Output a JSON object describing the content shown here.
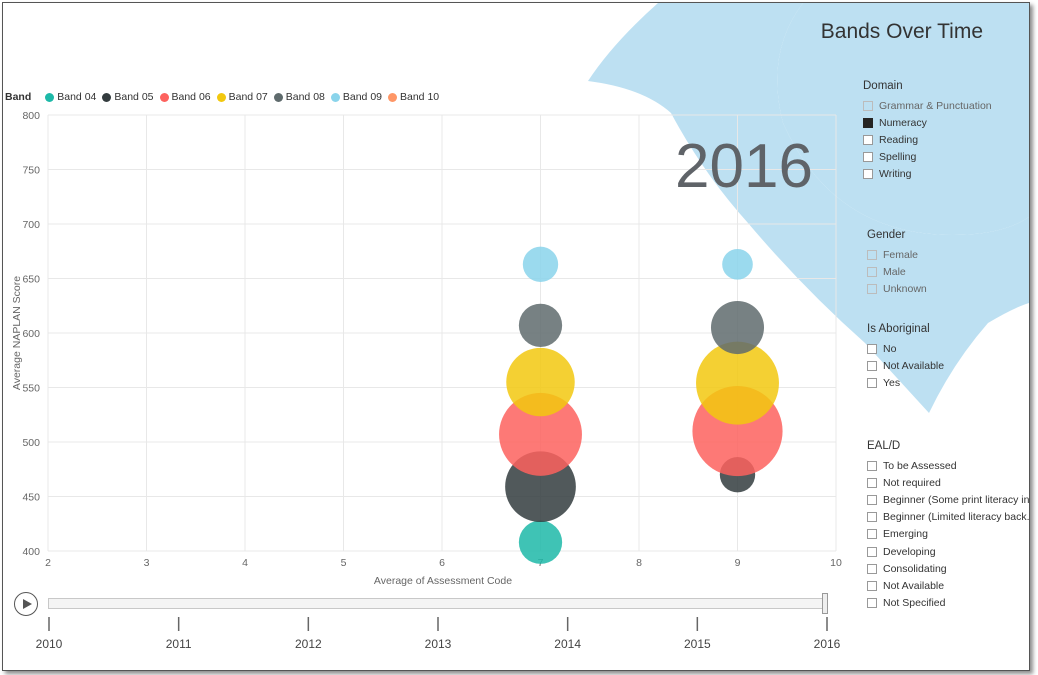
{
  "chart_data": {
    "type": "scatter",
    "title": "",
    "xlabel": "Average of Assessment Code",
    "ylabel": "Average NAPLAN Score",
    "xlim": [
      2,
      10
    ],
    "ylim": [
      400,
      800
    ],
    "x_ticks": [
      "2",
      "3",
      "4",
      "5",
      "6",
      "7",
      "8",
      "9",
      "10"
    ],
    "y_ticks": [
      "800",
      "750",
      "700",
      "650",
      "600",
      "550",
      "500",
      "450",
      "400"
    ],
    "grid": true,
    "legend_title": "Band",
    "legend_position": "top-left",
    "series": [
      {
        "name": "Band 04",
        "color": "#1db9a8",
        "points": [
          {
            "x": 7,
            "y": 408,
            "size": 3
          }
        ]
      },
      {
        "name": "Band 05",
        "color": "#333c3e",
        "points": [
          {
            "x": 7,
            "y": 459,
            "size": 8
          },
          {
            "x": 9,
            "y": 470,
            "size": 2
          }
        ]
      },
      {
        "name": "Band 06",
        "color": "#fd625e",
        "points": [
          {
            "x": 7,
            "y": 507,
            "size": 11
          },
          {
            "x": 9,
            "y": 510,
            "size": 13
          }
        ]
      },
      {
        "name": "Band 07",
        "color": "#f2c80f",
        "points": [
          {
            "x": 7,
            "y": 555,
            "size": 7.5
          },
          {
            "x": 9,
            "y": 554,
            "size": 11
          }
        ]
      },
      {
        "name": "Band 08",
        "color": "#5f6b6d",
        "points": [
          {
            "x": 7,
            "y": 607,
            "size": 3
          },
          {
            "x": 9,
            "y": 605,
            "size": 4.5
          }
        ]
      },
      {
        "name": "Band 09",
        "color": "#8ad4eb",
        "points": [
          {
            "x": 7,
            "y": 663,
            "size": 2
          },
          {
            "x": 9,
            "y": 663,
            "size": 1.5
          }
        ]
      },
      {
        "name": "Band 10",
        "color": "#fe9666",
        "points": []
      }
    ]
  },
  "report_title": "Bands Over Time",
  "current_year": "2016",
  "timeline": {
    "years": [
      "2010",
      "2011",
      "2012",
      "2013",
      "2014",
      "2015",
      "2016"
    ],
    "current": "2016",
    "progress": 1.0
  },
  "slicers": {
    "domain": {
      "title": "Domain",
      "items": [
        {
          "label": "Grammar & Punctuation",
          "checked": false
        },
        {
          "label": "Numeracy",
          "checked": true
        },
        {
          "label": "Reading",
          "checked": false
        },
        {
          "label": "Spelling",
          "checked": false
        },
        {
          "label": "Writing",
          "checked": false
        }
      ]
    },
    "gender": {
      "title": "Gender",
      "items": [
        {
          "label": "Female",
          "checked": false
        },
        {
          "label": "Male",
          "checked": false
        },
        {
          "label": "Unknown",
          "checked": false
        }
      ]
    },
    "aboriginal": {
      "title": "Is Aboriginal",
      "items": [
        {
          "label": "No",
          "checked": false
        },
        {
          "label": "Not Available",
          "checked": false
        },
        {
          "label": "Yes",
          "checked": false
        }
      ]
    },
    "eald": {
      "title": "EAL/D",
      "items": [
        {
          "label": "To be Assessed",
          "checked": false
        },
        {
          "label": "Not required",
          "checked": false
        },
        {
          "label": "Beginner (Some print literacy in...",
          "checked": false
        },
        {
          "label": "Beginner (Limited literacy back...",
          "checked": false
        },
        {
          "label": "Emerging",
          "checked": false
        },
        {
          "label": "Developing",
          "checked": false
        },
        {
          "label": "Consolidating",
          "checked": false
        },
        {
          "label": "Not Available",
          "checked": false
        },
        {
          "label": "Not Specified",
          "checked": false
        }
      ]
    }
  },
  "colors": {
    "decoration": "#bde0f2",
    "grid": "#e8e8e8",
    "axis_text": "#666666"
  }
}
